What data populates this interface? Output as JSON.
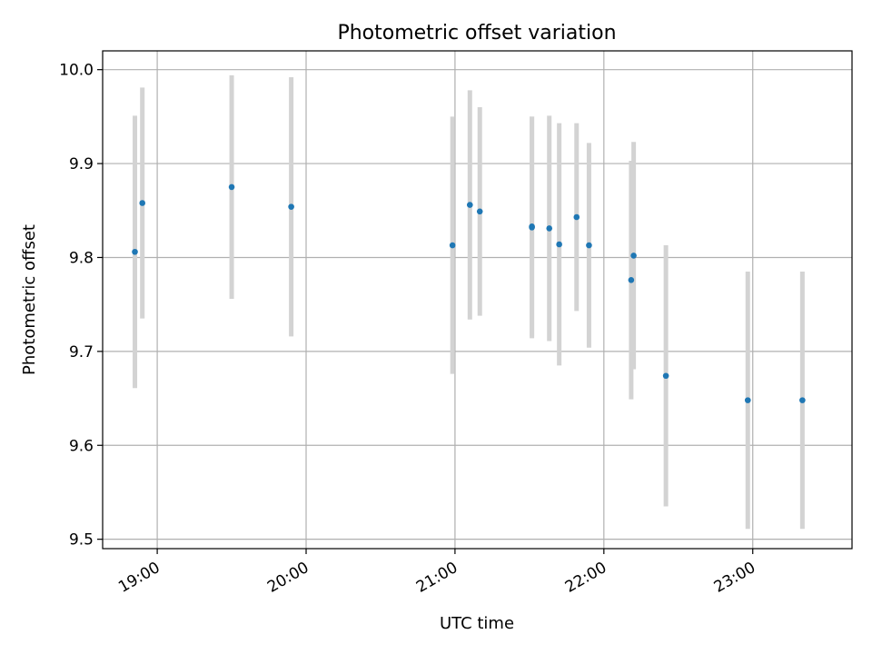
{
  "chart_data": {
    "type": "scatter",
    "title": "Photometric offset variation",
    "xlabel": "UTC time",
    "ylabel": "Photometric offset",
    "xlim": [
      "18:38",
      "23:40"
    ],
    "ylim": [
      9.49,
      10.02
    ],
    "grid": true,
    "x_ticks": [
      "19:00",
      "20:00",
      "21:00",
      "22:00",
      "23:00"
    ],
    "y_ticks": [
      "9.5",
      "9.6",
      "9.7",
      "9.8",
      "9.9",
      "10.0"
    ],
    "points": [
      {
        "x": "18:51",
        "y": 9.806,
        "err": 0.145
      },
      {
        "x": "18:54",
        "y": 9.858,
        "err": 0.123
      },
      {
        "x": "19:30",
        "y": 9.875,
        "err": 0.119
      },
      {
        "x": "19:54",
        "y": 9.854,
        "err": 0.138
      },
      {
        "x": "20:59",
        "y": 9.813,
        "err": 0.137
      },
      {
        "x": "21:06",
        "y": 9.856,
        "err": 0.122
      },
      {
        "x": "21:10",
        "y": 9.849,
        "err": 0.111
      },
      {
        "x": "21:31",
        "y": 9.833,
        "err": 0.117
      },
      {
        "x": "21:31",
        "y": 9.832,
        "err": 0.118
      },
      {
        "x": "21:38",
        "y": 9.831,
        "err": 0.12
      },
      {
        "x": "21:42",
        "y": 9.814,
        "err": 0.129
      },
      {
        "x": "21:49",
        "y": 9.843,
        "err": 0.1
      },
      {
        "x": "21:54",
        "y": 9.813,
        "err": 0.109
      },
      {
        "x": "22:11",
        "y": 9.776,
        "err": 0.127
      },
      {
        "x": "22:12",
        "y": 9.802,
        "err": 0.121
      },
      {
        "x": "22:25",
        "y": 9.674,
        "err": 0.139
      },
      {
        "x": "22:58",
        "y": 9.648,
        "err": 0.137
      },
      {
        "x": "23:20",
        "y": 9.648,
        "err": 0.137
      }
    ],
    "colors": {
      "marker": "#1f77b4",
      "errorbar": "#d3d3d3",
      "grid": "#b0b0b0",
      "axes": "#000000"
    }
  }
}
